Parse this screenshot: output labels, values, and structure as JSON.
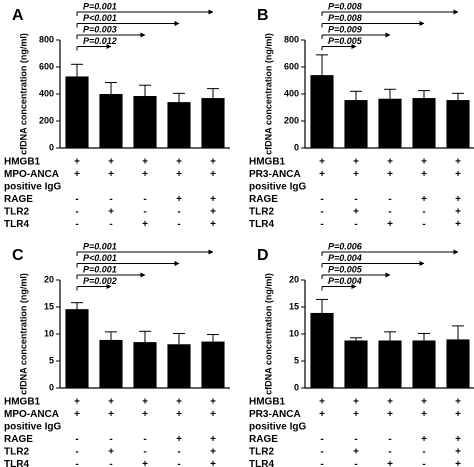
{
  "chart_data": [
    {
      "type": "bar",
      "panel": "A",
      "ylabel": "cfDNA concentration (ng/ml)",
      "color": "#000000",
      "ylim": [
        0,
        800
      ],
      "yticks": [
        0,
        200,
        400,
        600,
        800
      ],
      "values": [
        530,
        400,
        385,
        340,
        370
      ],
      "errors": [
        90,
        85,
        80,
        65,
        70
      ],
      "comparisons": [
        "P=0.012",
        "P=0.003",
        "P<0.001",
        "P=0.001"
      ],
      "rows": [
        {
          "label": "HMGB1",
          "cells": [
            "+",
            "+",
            "+",
            "+",
            "+"
          ]
        },
        {
          "label": "MPO-ANCA",
          "cells": [
            "+",
            "+",
            "+",
            "+",
            "+"
          ]
        },
        {
          "label": "positive IgG",
          "cells": []
        },
        {
          "label": "RAGE",
          "cells": [
            "-",
            "-",
            "-",
            "+",
            "+"
          ]
        },
        {
          "label": "TLR2",
          "cells": [
            "-",
            "+",
            "-",
            "-",
            "+"
          ]
        },
        {
          "label": "TLR4",
          "cells": [
            "-",
            "-",
            "+",
            "-",
            "+"
          ]
        }
      ]
    },
    {
      "type": "bar",
      "panel": "B",
      "ylabel": "cfDNA concentration (ng/ml)",
      "color": "#000000",
      "ylim": [
        0,
        800
      ],
      "yticks": [
        0,
        200,
        400,
        600,
        800
      ],
      "values": [
        540,
        355,
        365,
        370,
        355
      ],
      "errors": [
        150,
        65,
        70,
        55,
        50
      ],
      "comparisons": [
        "P=0.005",
        "P=0.009",
        "P=0.008",
        "P=0.008"
      ],
      "rows": [
        {
          "label": "HMGB1",
          "cells": [
            "+",
            "+",
            "+",
            "+",
            "+"
          ]
        },
        {
          "label": "PR3-ANCA",
          "cells": [
            "+",
            "+",
            "+",
            "+",
            "+"
          ]
        },
        {
          "label": "positive IgG",
          "cells": []
        },
        {
          "label": "RAGE",
          "cells": [
            "-",
            "-",
            "-",
            "+",
            "+"
          ]
        },
        {
          "label": "TLR2",
          "cells": [
            "-",
            "+",
            "-",
            "-",
            "+"
          ]
        },
        {
          "label": "TLR4",
          "cells": [
            "-",
            "-",
            "+",
            "-",
            "+"
          ]
        }
      ]
    },
    {
      "type": "bar",
      "panel": "C",
      "ylabel": "cfDNA concentration (ng/ml)",
      "color": "#000000",
      "ylim": [
        0,
        20
      ],
      "yticks": [
        0,
        5,
        10,
        15,
        20
      ],
      "values": [
        14.6,
        8.9,
        8.5,
        8.1,
        8.6
      ],
      "errors": [
        1.2,
        1.5,
        2.0,
        2.0,
        1.3
      ],
      "comparisons": [
        "P=0.002",
        "P=0.001",
        "P<0.001",
        "P=0.001"
      ],
      "rows": [
        {
          "label": "HMGB1",
          "cells": [
            "+",
            "+",
            "+",
            "+",
            "+"
          ]
        },
        {
          "label": "MPO-ANCA",
          "cells": [
            "+",
            "+",
            "+",
            "+",
            "+"
          ]
        },
        {
          "label": "positive IgG",
          "cells": []
        },
        {
          "label": "RAGE",
          "cells": [
            "-",
            "-",
            "-",
            "+",
            "+"
          ]
        },
        {
          "label": "TLR2",
          "cells": [
            "-",
            "+",
            "-",
            "-",
            "+"
          ]
        },
        {
          "label": "TLR4",
          "cells": [
            "-",
            "-",
            "+",
            "-",
            "+"
          ]
        }
      ]
    },
    {
      "type": "bar",
      "panel": "D",
      "ylabel": "cfDNA concentration (ng/ml)",
      "color": "#000000",
      "ylim": [
        0,
        20
      ],
      "yticks": [
        0,
        5,
        10,
        15,
        20
      ],
      "values": [
        13.9,
        8.8,
        8.8,
        8.8,
        9.0
      ],
      "errors": [
        2.5,
        0.5,
        1.6,
        1.3,
        2.5
      ],
      "comparisons": [
        "P=0.004",
        "P=0.005",
        "P=0.004",
        "P=0.006"
      ],
      "rows": [
        {
          "label": "HMGB1",
          "cells": [
            "+",
            "+",
            "+",
            "+",
            "+"
          ]
        },
        {
          "label": "PR3-ANCA",
          "cells": [
            "+",
            "+",
            "+",
            "+",
            "+"
          ]
        },
        {
          "label": "positive IgG",
          "cells": []
        },
        {
          "label": "RAGE",
          "cells": [
            "-",
            "-",
            "-",
            "+",
            "+"
          ]
        },
        {
          "label": "TLR2",
          "cells": [
            "-",
            "+",
            "-",
            "-",
            "+"
          ]
        },
        {
          "label": "TLR4",
          "cells": [
            "-",
            "-",
            "+",
            "-",
            "+"
          ]
        }
      ]
    }
  ]
}
